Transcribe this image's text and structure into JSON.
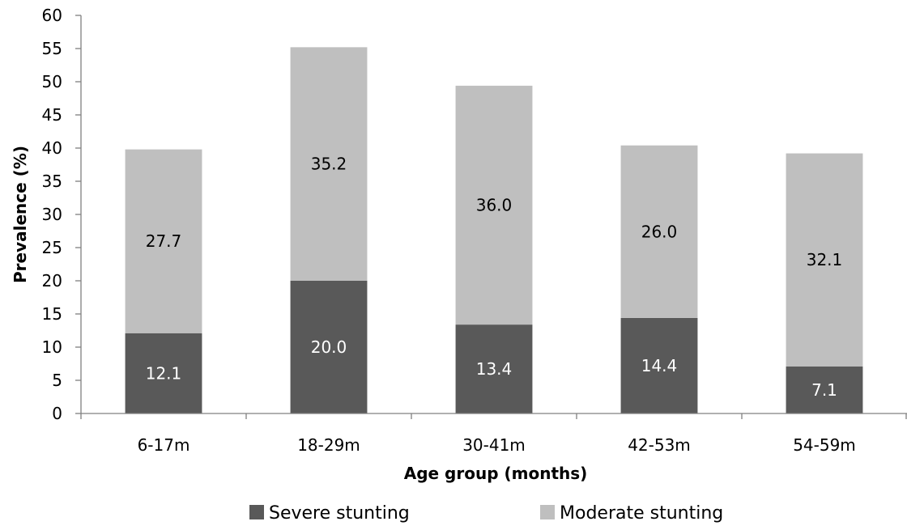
{
  "chart_data": {
    "type": "bar",
    "stacked": true,
    "categories": [
      "6-17m",
      "18-29m",
      "30-41m",
      "42-53m",
      "54-59m"
    ],
    "series": [
      {
        "name": "Severe stunting",
        "values": [
          12.1,
          20.0,
          13.4,
          14.4,
          7.1
        ],
        "labels": [
          "12.1",
          "20.0",
          "13.4",
          "14.4",
          "7.1"
        ],
        "color": "#595959",
        "label_color": "#ffffff"
      },
      {
        "name": "Moderate stunting",
        "values": [
          27.7,
          35.2,
          36.0,
          26.0,
          32.1
        ],
        "labels": [
          "27.7",
          "35.2",
          "36.0",
          "26.0",
          "32.1"
        ],
        "color": "#bfbfbf",
        "label_color": "#000000"
      }
    ],
    "xlabel": "Age group (months)",
    "ylabel": "Prevalence (%)",
    "ylim": [
      0,
      60
    ],
    "yticks": [
      0,
      5,
      10,
      15,
      20,
      25,
      30,
      35,
      40,
      45,
      50,
      55,
      60
    ],
    "grid": false,
    "legend_position": "bottom"
  }
}
